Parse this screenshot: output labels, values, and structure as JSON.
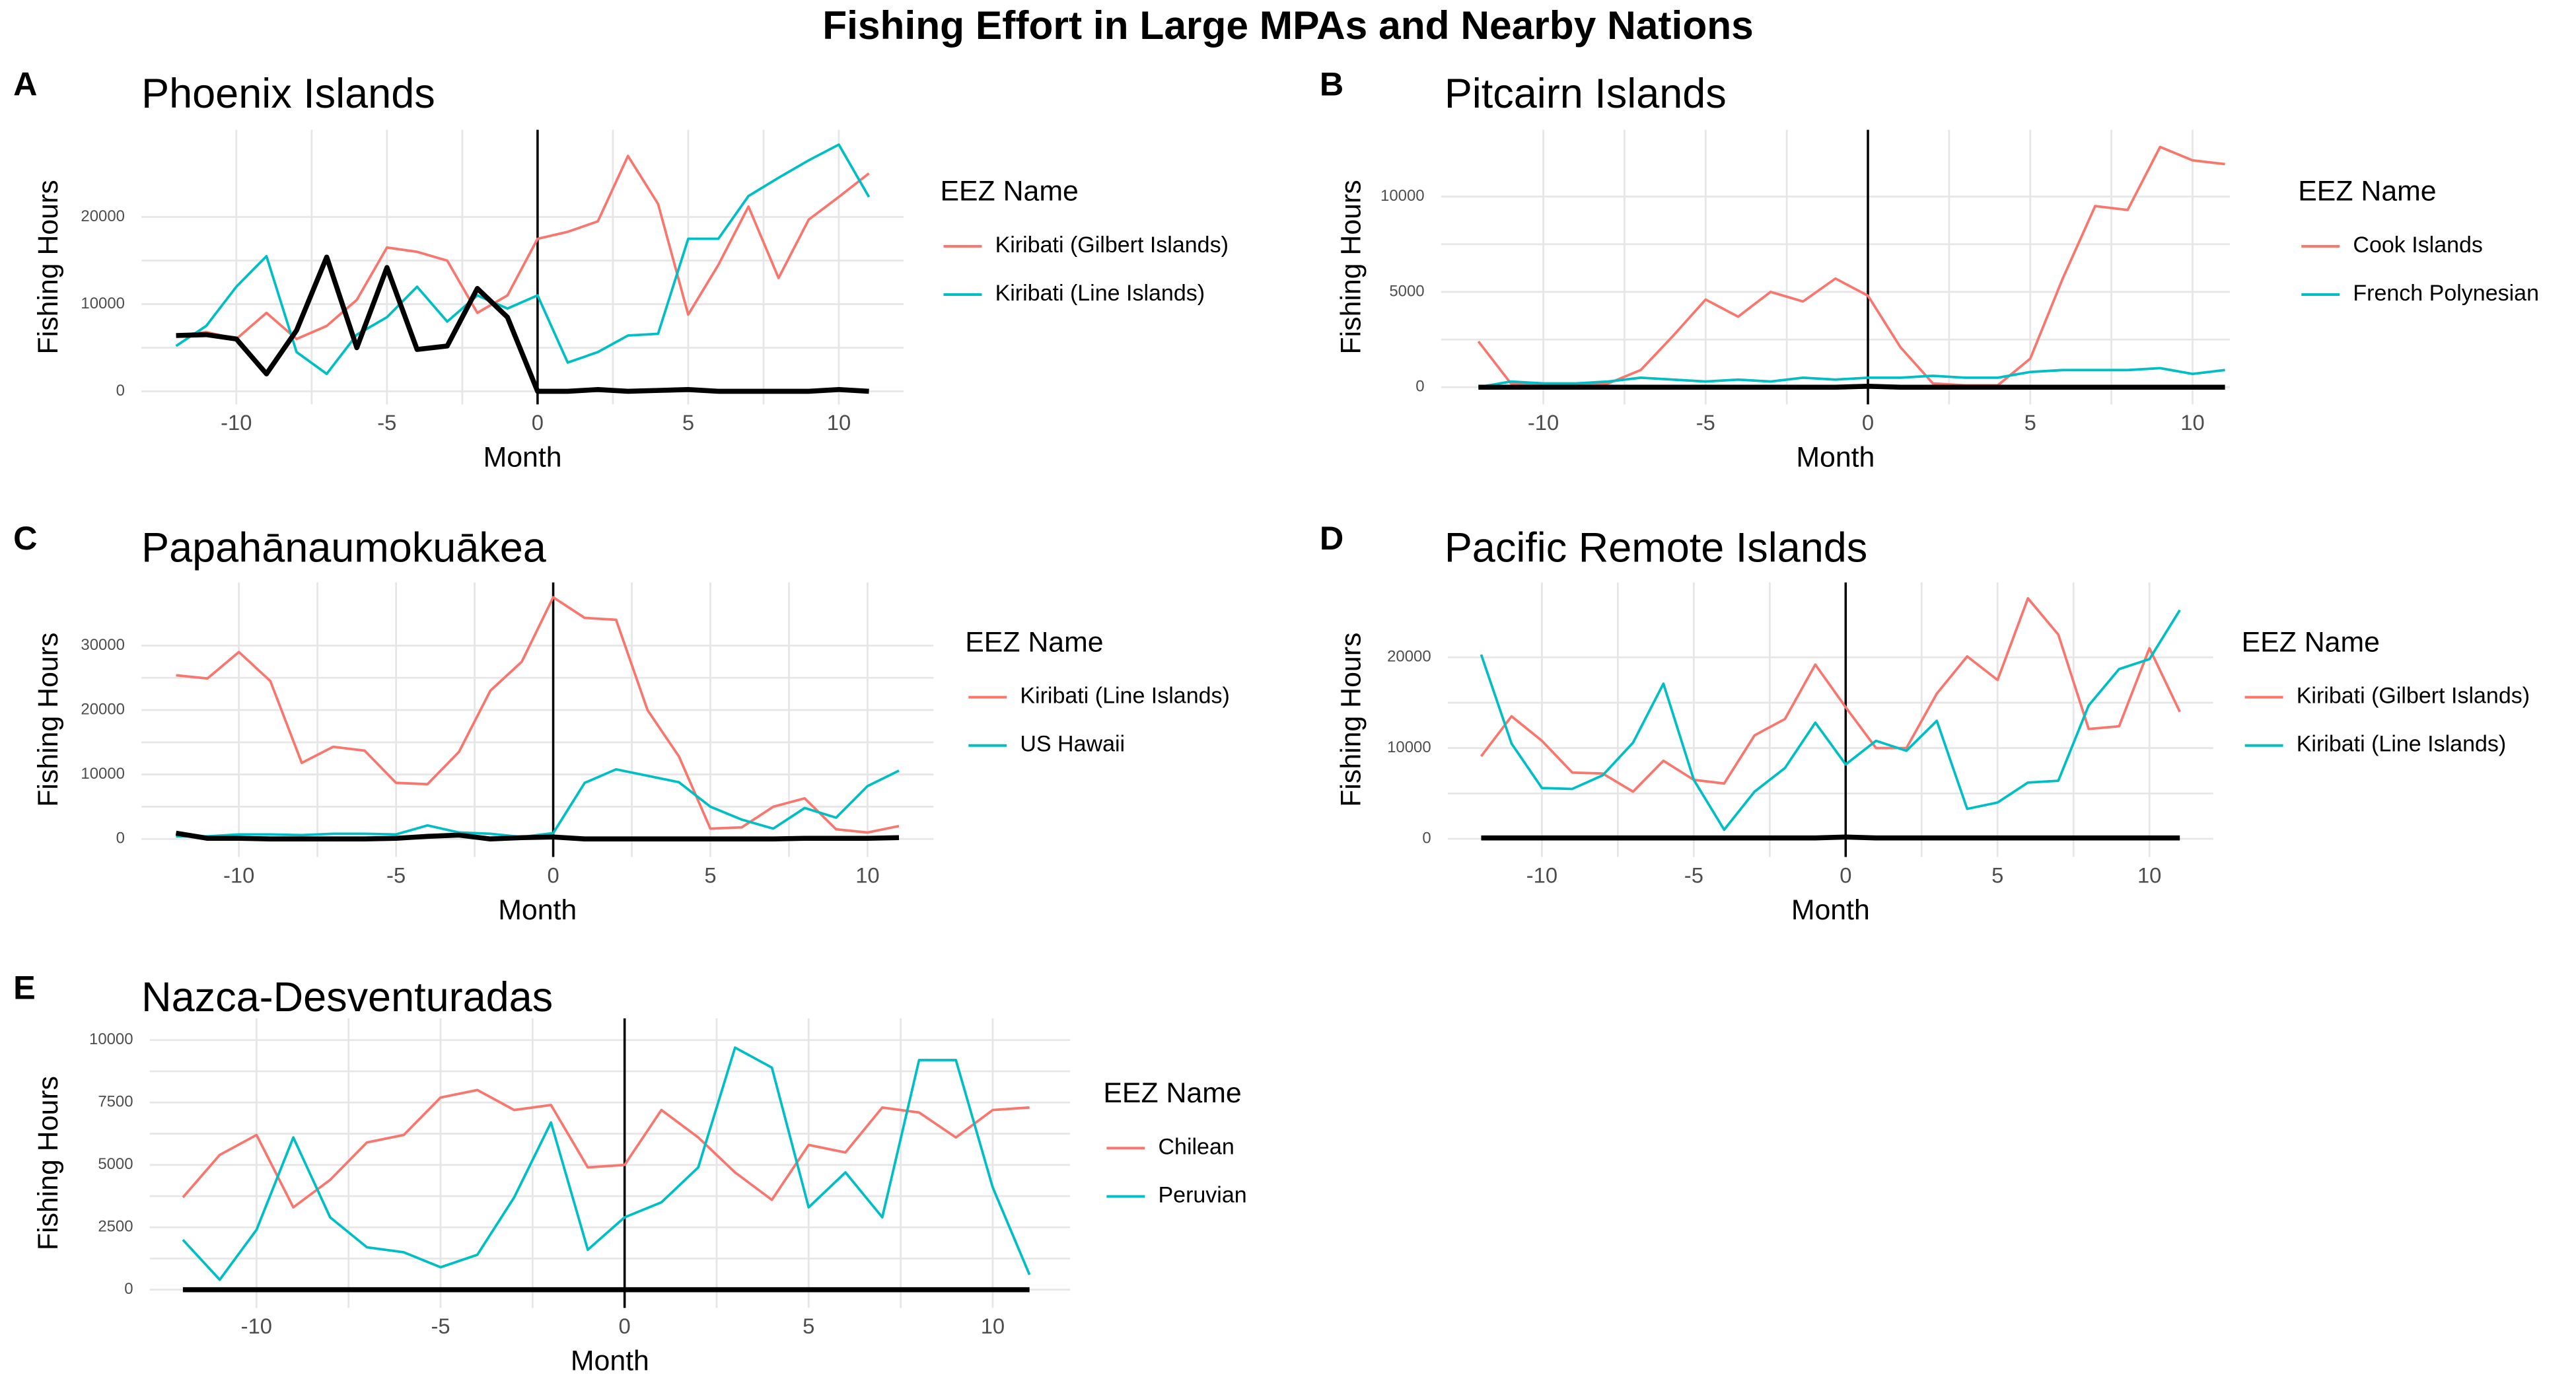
{
  "title": "Fishing Effort in Large MPAs and Nearby Nations",
  "chart_data": [
    {
      "type": "line",
      "panel_label": "A",
      "title": "Phoenix Islands",
      "x_label": "Month",
      "y_label": "Fishing Hours",
      "legend_title": "EEZ Name",
      "x": [
        -12,
        -11,
        -10,
        -9,
        -8,
        -7,
        -6,
        -5,
        -4,
        -3,
        -2,
        -1,
        0,
        1,
        2,
        3,
        4,
        5,
        6,
        7,
        8,
        9,
        10,
        11
      ],
      "xlim": [
        -13.15,
        12.15
      ],
      "xticks": [
        -10,
        -5,
        0,
        5,
        10
      ],
      "ylim": [
        -1500,
        30000
      ],
      "yticks": [
        0,
        10000,
        20000
      ],
      "vline": 0,
      "grid": true,
      "series": [
        {
          "name": "Kiribati (Gilbert Islands)",
          "color": "#F8766D",
          "values": [
            6400,
            6800,
            6000,
            9000,
            6000,
            7500,
            10500,
            16500,
            16000,
            15000,
            9000,
            11000,
            17500,
            18300,
            19500,
            27000,
            21500,
            8800,
            14500,
            21200,
            13000,
            19700,
            22300,
            25000
          ]
        },
        {
          "name": "Kiribati (Line Islands)",
          "color": "#00BFC4",
          "values": [
            5200,
            7500,
            12000,
            15500,
            4500,
            2000,
            6500,
            8500,
            12000,
            8000,
            11000,
            9500,
            11000,
            3300,
            4500,
            6400,
            6600,
            17500,
            17500,
            22400,
            24500,
            26500,
            28300,
            22300
          ]
        },
        {
          "color": "#000000",
          "values": [
            6400,
            6500,
            6000,
            2000,
            7000,
            15400,
            5000,
            14200,
            4800,
            5200,
            11800,
            8500,
            0,
            0,
            200,
            0,
            100,
            200,
            0,
            0,
            0,
            0,
            200,
            0
          ]
        }
      ]
    },
    {
      "type": "line",
      "panel_label": "B",
      "title": "Pitcairn Islands",
      "x_label": "Month",
      "y_label": "Fishing Hours",
      "legend_title": "EEZ Name",
      "x": [
        -12,
        -11,
        -10,
        -9,
        -8,
        -7,
        -6,
        -5,
        -4,
        -3,
        -2,
        -1,
        0,
        1,
        2,
        3,
        4,
        5,
        6,
        7,
        8,
        9,
        10,
        11
      ],
      "xlim": [
        -13.15,
        11.15
      ],
      "xticks": [
        -10,
        -5,
        0,
        5,
        10
      ],
      "ylim": [
        -900,
        13500
      ],
      "yticks": [
        0,
        5000,
        10000
      ],
      "vline": 0,
      "grid": true,
      "series": [
        {
          "name": "Cook Islands",
          "color": "#F8766D",
          "values": [
            2400,
            200,
            100,
            100,
            200,
            900,
            2700,
            4600,
            3700,
            5000,
            4500,
            5700,
            4800,
            2100,
            200,
            100,
            100,
            1500,
            5700,
            9500,
            9300,
            12600,
            11900,
            11700
          ]
        },
        {
          "name": "French Polynesian",
          "color": "#00BFC4",
          "values": [
            0,
            300,
            200,
            200,
            300,
            500,
            400,
            300,
            400,
            300,
            500,
            400,
            500,
            500,
            600,
            500,
            500,
            800,
            900,
            900,
            900,
            1000,
            700,
            900
          ]
        },
        {
          "color": "#000000",
          "values": [
            0,
            0,
            0,
            0,
            0,
            0,
            0,
            0,
            0,
            0,
            0,
            0,
            50,
            0,
            0,
            0,
            0,
            0,
            0,
            0,
            0,
            0,
            0,
            0
          ]
        }
      ]
    },
    {
      "type": "line",
      "panel_label": "C",
      "title": "Papahānaumokuākea",
      "x_label": "Month",
      "y_label": "Fishing Hours",
      "legend_title": "EEZ Name",
      "x": [
        -12,
        -11,
        -10,
        -9,
        -8,
        -7,
        -6,
        -5,
        -4,
        -3,
        -2,
        -1,
        0,
        1,
        2,
        3,
        4,
        5,
        6,
        7,
        8,
        9,
        10,
        11
      ],
      "xlim": [
        -13.1,
        12.1
      ],
      "xticks": [
        -10,
        -5,
        0,
        5,
        10
      ],
      "ylim": [
        -2800,
        39800
      ],
      "yticks": [
        0,
        10000,
        20000,
        30000
      ],
      "vline": 0,
      "grid": true,
      "series": [
        {
          "name": "Kiribati (Line Islands)",
          "color": "#F8766D",
          "values": [
            25400,
            24900,
            29000,
            24500,
            11800,
            14300,
            13700,
            8700,
            8500,
            13500,
            23000,
            27500,
            37500,
            34300,
            34000,
            20000,
            12800,
            1600,
            1800,
            5000,
            6300,
            1500,
            1000,
            2000
          ]
        },
        {
          "name": "US Hawaii",
          "color": "#00BFC4",
          "values": [
            400,
            400,
            700,
            700,
            600,
            800,
            800,
            700,
            2100,
            1000,
            800,
            300,
            900,
            8700,
            10800,
            9800,
            8800,
            5000,
            3000,
            1600,
            4800,
            3300,
            8200,
            10600
          ]
        },
        {
          "color": "#000000",
          "values": [
            900,
            100,
            100,
            0,
            0,
            0,
            0,
            100,
            400,
            600,
            0,
            200,
            300,
            0,
            0,
            0,
            0,
            0,
            0,
            0,
            100,
            100,
            100,
            200
          ]
        }
      ]
    },
    {
      "type": "line",
      "panel_label": "D",
      "title": "Pacific Remote Islands",
      "x_label": "Month",
      "y_label": "Fishing Hours",
      "legend_title": "EEZ Name",
      "x": [
        -12,
        -11,
        -10,
        -9,
        -8,
        -7,
        -6,
        -5,
        -4,
        -3,
        -2,
        -1,
        0,
        1,
        2,
        3,
        4,
        5,
        6,
        7,
        8,
        9,
        10,
        11
      ],
      "xlim": [
        -13.1,
        12.1
      ],
      "xticks": [
        -10,
        -5,
        0,
        5,
        10
      ],
      "ylim": [
        -2000,
        28250
      ],
      "yticks": [
        0,
        10000,
        20000
      ],
      "vline": 0,
      "grid": true,
      "series": [
        {
          "name": "Kiribati (Gilbert Islands)",
          "color": "#F8766D",
          "values": [
            9100,
            13500,
            10800,
            7300,
            7200,
            5200,
            8600,
            6500,
            6100,
            11400,
            13200,
            19200,
            14500,
            10000,
            10000,
            16000,
            20100,
            17500,
            26500,
            22500,
            12100,
            12400,
            21000,
            14000
          ]
        },
        {
          "name": "Kiribati (Line Islands)",
          "color": "#00BFC4",
          "values": [
            20300,
            10500,
            5600,
            5500,
            7000,
            10600,
            17100,
            6500,
            1000,
            5200,
            7800,
            12800,
            8200,
            10800,
            9700,
            13000,
            3300,
            4000,
            6200,
            6400,
            14700,
            18700,
            19800,
            25200
          ]
        },
        {
          "color": "#000000",
          "values": [
            100,
            100,
            100,
            100,
            100,
            100,
            100,
            100,
            100,
            100,
            100,
            100,
            200,
            100,
            100,
            100,
            100,
            100,
            100,
            100,
            100,
            100,
            100,
            100
          ]
        }
      ]
    },
    {
      "type": "line",
      "panel_label": "E",
      "title": "Nazca-Desventuradas",
      "x_label": "Month",
      "y_label": "Fishing Hours",
      "legend_title": "EEZ Name",
      "x": [
        -12,
        -11,
        -10,
        -9,
        -8,
        -7,
        -6,
        -5,
        -4,
        -3,
        -2,
        -1,
        0,
        1,
        2,
        3,
        4,
        5,
        6,
        7,
        8,
        9,
        10,
        11
      ],
      "xlim": [
        -12.9,
        12.1
      ],
      "xticks": [
        -10,
        -5,
        0,
        5,
        10
      ],
      "ylim": [
        -730,
        10870
      ],
      "yticks": [
        0,
        2500,
        5000,
        7500,
        10000
      ],
      "vline": 0,
      "grid": true,
      "series": [
        {
          "name": "Chilean",
          "color": "#F8766D",
          "values": [
            3700,
            5400,
            6200,
            3300,
            4400,
            5900,
            6200,
            7700,
            8000,
            7200,
            7400,
            4900,
            5000,
            7200,
            6100,
            4700,
            3600,
            5800,
            5500,
            7300,
            7100,
            6100,
            7200,
            7300
          ]
        },
        {
          "name": "Peruvian",
          "color": "#00BFC4",
          "values": [
            2000,
            400,
            2400,
            6100,
            2900,
            1700,
            1500,
            900,
            1400,
            3700,
            6700,
            1600,
            2900,
            3500,
            4900,
            9700,
            8900,
            3300,
            4700,
            2900,
            9200,
            9200,
            4100,
            600
          ]
        },
        {
          "color": "#000000",
          "values": [
            0,
            0,
            0,
            0,
            0,
            0,
            0,
            0,
            0,
            0,
            0,
            0,
            0,
            0,
            0,
            0,
            0,
            0,
            0,
            0,
            0,
            0,
            0,
            0
          ]
        }
      ]
    }
  ]
}
